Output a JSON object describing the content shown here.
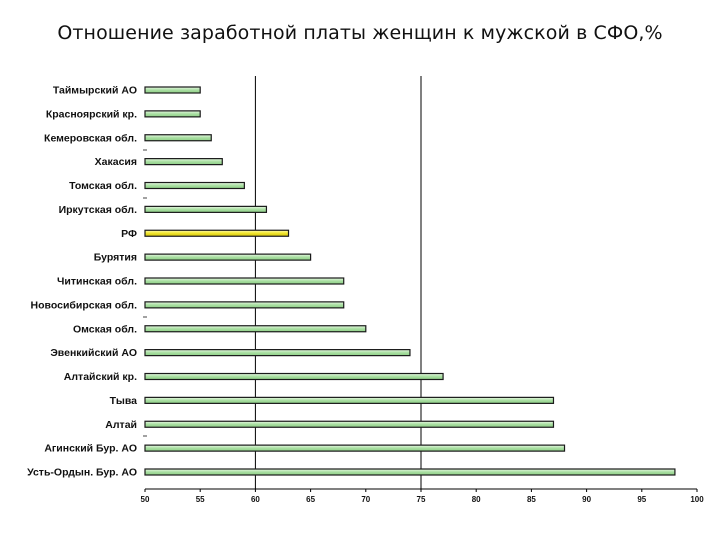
{
  "title": "Отношение заработной платы женщин к мужской в СФО,%",
  "colors": {
    "bar_fill": "#b9e8b4",
    "bar_highlight": "#f0e52a",
    "bar_stroke": "#1a1a1a",
    "line": "#000000"
  },
  "chart_data": {
    "type": "bar",
    "orientation": "horizontal",
    "title": "Отношение заработной платы женщин к мужской в СФО,%",
    "categories": [
      "Таймырский АО",
      "Красноярский кр.",
      "Кемеровская обл.",
      "Хакасия",
      "Томская обл.",
      "Иркутская обл.",
      "РФ",
      "Бурятия",
      "Читинская обл.",
      "Новосибирская обл.",
      "Омская обл.",
      "Эвенкийский АО",
      "Алтайский кр.",
      "Тыва",
      "Алтай",
      "Агинский Бур. АО",
      "Усть-Ордын. Бур. АО"
    ],
    "values": [
      55,
      55,
      56,
      57,
      59,
      61,
      63,
      65,
      68,
      68,
      70,
      74,
      77,
      87,
      87,
      88,
      98
    ],
    "highlight": "РФ",
    "xlim": [
      50,
      100
    ],
    "xticks": [
      "50",
      "55",
      "60",
      "65",
      "70",
      "75",
      "80",
      "85",
      "90",
      "95",
      "100"
    ],
    "reference_lines": [
      60,
      75
    ],
    "xlabel": "",
    "ylabel": "",
    "grid": false,
    "legend": "none"
  }
}
